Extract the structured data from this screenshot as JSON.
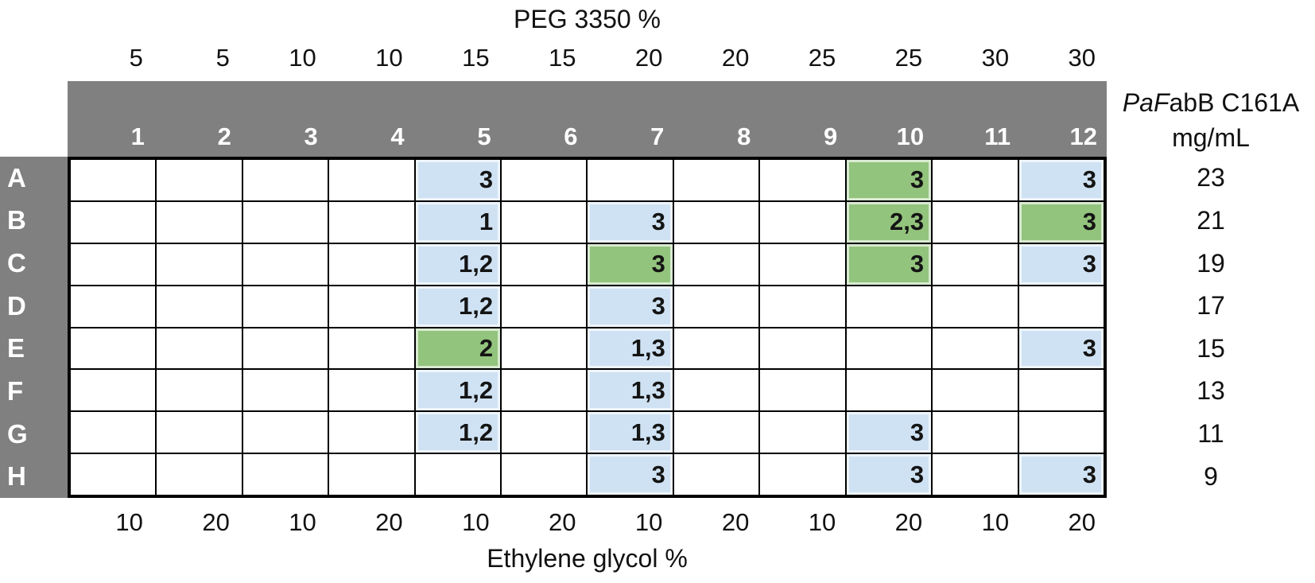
{
  "labels": {
    "top_axis_title": "PEG 3350 %",
    "bottom_axis_title": "Ethylene glycol %",
    "right_header_italic": "PaF",
    "right_header_rest": "abB C161A",
    "right_header_line2": "mg/mL"
  },
  "colors": {
    "header_gray": "#808080",
    "cell_blue": "#CFE2F3",
    "cell_green": "#93C47D",
    "grid_line": "#000000",
    "header_text": "#ffffff"
  },
  "chart_data": {
    "type": "heatmap",
    "top_axis_label": "PEG 3350 %",
    "bottom_axis_label": "Ethylene glycol %",
    "right_axis_label": "PaFabB C161A mg/mL",
    "columns": [
      "1",
      "2",
      "3",
      "4",
      "5",
      "6",
      "7",
      "8",
      "9",
      "10",
      "11",
      "12"
    ],
    "rows": [
      "A",
      "B",
      "C",
      "D",
      "E",
      "F",
      "G",
      "H"
    ],
    "peg_3350_pct_by_column": [
      5,
      5,
      10,
      10,
      15,
      15,
      20,
      20,
      25,
      25,
      30,
      30
    ],
    "ethylene_glycol_pct_by_column": [
      10,
      20,
      10,
      20,
      10,
      20,
      10,
      20,
      10,
      20,
      10,
      20
    ],
    "protein_mg_per_ml_by_row": [
      23,
      21,
      19,
      17,
      15,
      13,
      11,
      9
    ],
    "cells": [
      {
        "row": "A",
        "col": 5,
        "label": "3",
        "fill": "blue"
      },
      {
        "row": "A",
        "col": 10,
        "label": "3",
        "fill": "green"
      },
      {
        "row": "A",
        "col": 12,
        "label": "3",
        "fill": "blue"
      },
      {
        "row": "B",
        "col": 5,
        "label": "1",
        "fill": "blue"
      },
      {
        "row": "B",
        "col": 7,
        "label": "3",
        "fill": "blue"
      },
      {
        "row": "B",
        "col": 10,
        "label": "2,3",
        "fill": "green"
      },
      {
        "row": "B",
        "col": 12,
        "label": "3",
        "fill": "green"
      },
      {
        "row": "C",
        "col": 5,
        "label": "1,2",
        "fill": "blue"
      },
      {
        "row": "C",
        "col": 7,
        "label": "3",
        "fill": "green"
      },
      {
        "row": "C",
        "col": 10,
        "label": "3",
        "fill": "green"
      },
      {
        "row": "C",
        "col": 12,
        "label": "3",
        "fill": "blue"
      },
      {
        "row": "D",
        "col": 5,
        "label": "1,2",
        "fill": "blue"
      },
      {
        "row": "D",
        "col": 7,
        "label": "3",
        "fill": "blue"
      },
      {
        "row": "E",
        "col": 5,
        "label": "2",
        "fill": "green"
      },
      {
        "row": "E",
        "col": 7,
        "label": "1,3",
        "fill": "blue"
      },
      {
        "row": "E",
        "col": 12,
        "label": "3",
        "fill": "blue"
      },
      {
        "row": "F",
        "col": 5,
        "label": "1,2",
        "fill": "blue"
      },
      {
        "row": "F",
        "col": 7,
        "label": "1,3",
        "fill": "blue"
      },
      {
        "row": "G",
        "col": 5,
        "label": "1,2",
        "fill": "blue"
      },
      {
        "row": "G",
        "col": 7,
        "label": "1,3",
        "fill": "blue"
      },
      {
        "row": "G",
        "col": 10,
        "label": "3",
        "fill": "blue"
      },
      {
        "row": "H",
        "col": 7,
        "label": "3",
        "fill": "blue"
      },
      {
        "row": "H",
        "col": 10,
        "label": "3",
        "fill": "blue"
      },
      {
        "row": "H",
        "col": 12,
        "label": "3",
        "fill": "blue"
      }
    ]
  }
}
